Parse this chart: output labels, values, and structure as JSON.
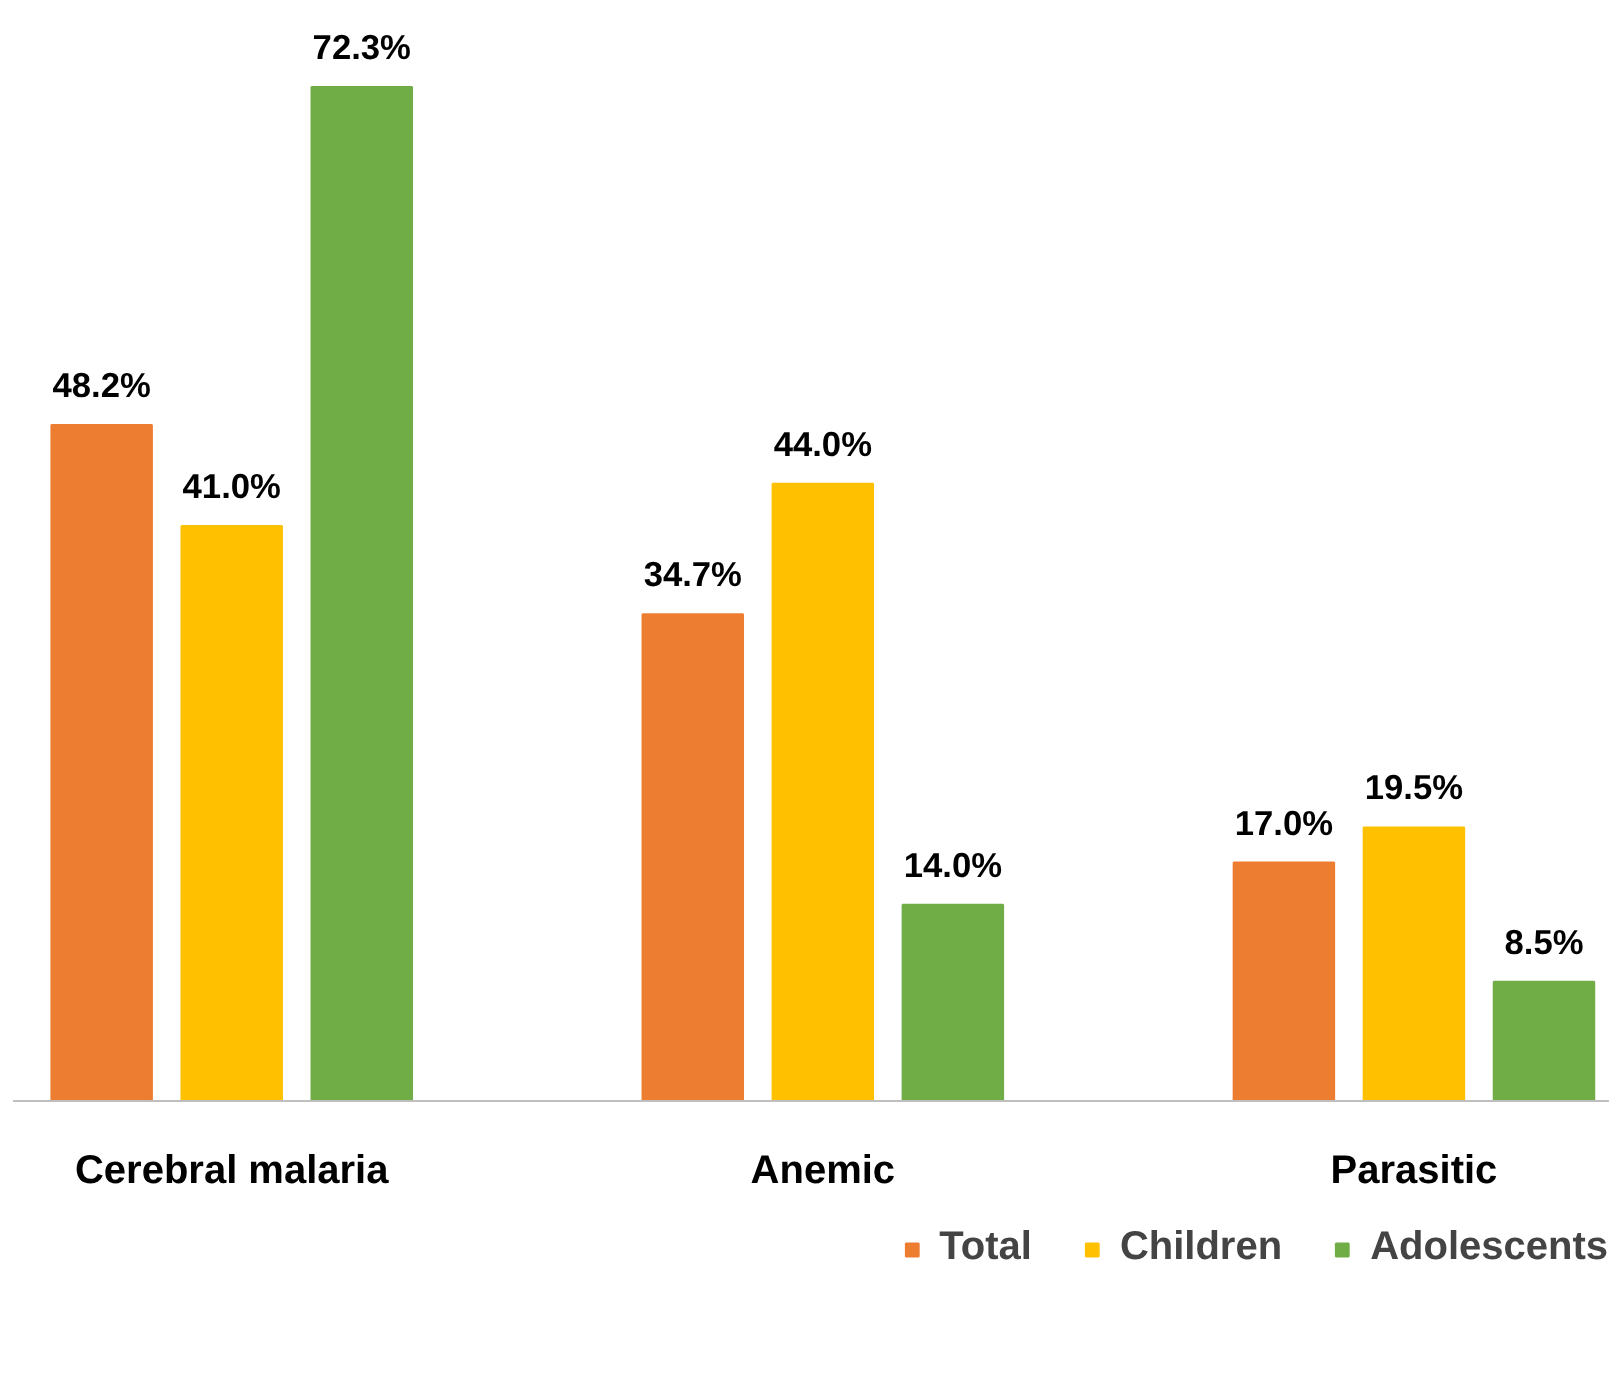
{
  "chart_data": {
    "type": "bar",
    "categories": [
      "Cerebral malaria",
      "Anemic",
      "Parasitic"
    ],
    "series": [
      {
        "name": "Total",
        "color": "#ed7d31",
        "values": [
          48.2,
          34.7,
          17.0
        ],
        "value_labels": [
          "48.2%",
          "34.7%",
          "17.0%"
        ]
      },
      {
        "name": "Children",
        "color": "#ffc000",
        "values": [
          41.0,
          44.0,
          19.5
        ],
        "value_labels": [
          "41.0%",
          "44.0%",
          "19.5%"
        ]
      },
      {
        "name": "Adolescents",
        "color": "#70ad47",
        "values": [
          72.3,
          14.0,
          8.5
        ],
        "value_labels": [
          "72.3%",
          "14.0%",
          "8.5%"
        ]
      }
    ],
    "grid": false,
    "legend": "bottom right"
  }
}
